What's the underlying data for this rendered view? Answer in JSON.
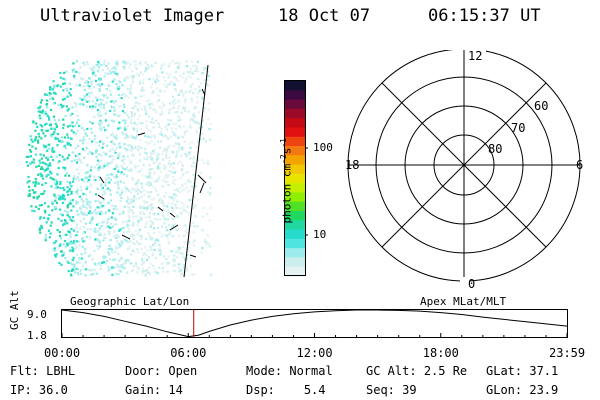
{
  "header": {
    "title": "Ultraviolet Imager",
    "date": "18 Oct 07",
    "time": "06:15:37 UT"
  },
  "colorbar": {
    "unit_label": "photon cm",
    "unit_sup1": "-2",
    "unit_mid": "s",
    "unit_sup2": "-1",
    "ticks": [
      "100",
      "10"
    ],
    "colors": [
      "#101030",
      "#3a0a40",
      "#6a0a3a",
      "#9a0a28",
      "#c40a14",
      "#e01010",
      "#ee4410",
      "#f37a10",
      "#f4a400",
      "#f2c800",
      "#e8e400",
      "#c4f000",
      "#90ee00",
      "#50e028",
      "#20d860",
      "#20d8a0",
      "#28dccc",
      "#50e4e0",
      "#9cecec",
      "#cceeee",
      "#e4f2f2"
    ]
  },
  "polar": {
    "labels": {
      "top": "12",
      "bottom": "0",
      "left": "18",
      "right": "6",
      "lat60": "60",
      "lat70": "70",
      "lat80": "80"
    }
  },
  "bottom_plot": {
    "left_title": "Geographic Lat/Lon",
    "right_title": "Apex MLat/MLT",
    "ylabel": "GC Alt",
    "ytick_top": "9.0",
    "ytick_bottom": "1.8",
    "xticks": [
      "00:00",
      "06:00",
      "12:00",
      "18:00",
      "23:59"
    ],
    "marker_color": "#c00000"
  },
  "chart_data": {
    "type": "line",
    "title": "",
    "xlabel": "",
    "ylabel": "GC Alt",
    "x": [
      0,
      6,
      12,
      18,
      24
    ],
    "xticklabels": [
      "00:00",
      "06:00",
      "12:00",
      "18:00",
      "23:59"
    ],
    "ylim": [
      1.8,
      9.0
    ],
    "series": [
      {
        "x": [
          0.0,
          1.0,
          2.0,
          3.0,
          4.0,
          5.0,
          6.0,
          6.5,
          7.0,
          8.0,
          9.0,
          10.0,
          11.0,
          12.0,
          13.0,
          14.0,
          15.0,
          16.0,
          17.0,
          18.0,
          19.0,
          20.0,
          21.0,
          22.0,
          23.0,
          24.0
        ],
        "values": [
          9.0,
          8.3,
          7.3,
          6.0,
          4.7,
          3.2,
          1.9,
          2.3,
          3.3,
          5.0,
          6.3,
          7.3,
          8.0,
          8.5,
          8.8,
          9.0,
          9.0,
          8.9,
          8.7,
          8.3,
          7.8,
          7.1,
          6.5,
          5.9,
          5.3,
          4.7
        ]
      }
    ],
    "marker_x": 6.26
  },
  "footer": {
    "col1": {
      "flt_label": "Flt:",
      "flt_value": "LBHL",
      "ip_label": "IP:",
      "ip_value": "36.0"
    },
    "col2": {
      "door_label": "Door:",
      "door_value": "Open",
      "gain_label": "Gain:",
      "gain_value": "14"
    },
    "col3": {
      "mode_label": "Mode:",
      "mode_value": "Normal",
      "dsp_label": "Dsp:",
      "dsp_value": "5.4"
    },
    "col4": {
      "gcalt_label": "GC Alt:",
      "gcalt_value": "2.5 Re",
      "seq_label": "Seq:",
      "seq_value": "39"
    },
    "col5": {
      "glat_label": "GLat:",
      "glat_value": "37.1",
      "glon_label": "GLon:",
      "glon_value": "23.9"
    }
  }
}
